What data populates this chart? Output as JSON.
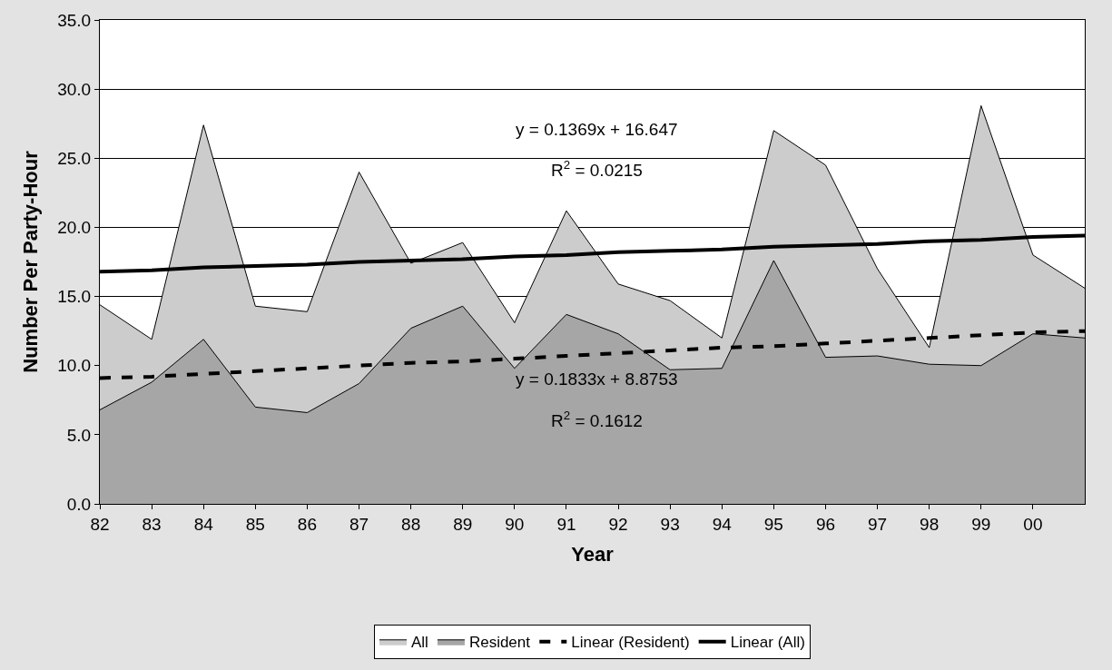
{
  "chart_data": {
    "type": "area",
    "categories": [
      "82",
      "83",
      "84",
      "85",
      "86",
      "87",
      "88",
      "89",
      "90",
      "91",
      "92",
      "93",
      "94",
      "95",
      "96",
      "97",
      "98",
      "99",
      "00",
      null
    ],
    "xlabel": "Year",
    "ylabel": "Number Per Party-Hour",
    "ylim": [
      0,
      35
    ],
    "yticks": [
      {
        "value": 0,
        "label": "0.0"
      },
      {
        "value": 5,
        "label": "5.0"
      },
      {
        "value": 10,
        "label": "10.0"
      },
      {
        "value": 15,
        "label": "15.0"
      },
      {
        "value": 20,
        "label": "20.0"
      },
      {
        "value": 25,
        "label": "25.0"
      },
      {
        "value": 30,
        "label": "30.0"
      },
      {
        "value": 35,
        "label": "35.0"
      }
    ],
    "grid": "y",
    "legend": "bottom",
    "series": [
      {
        "name": "All",
        "color": "#cccccc",
        "values": [
          14.4,
          11.9,
          27.4,
          14.3,
          13.9,
          24.0,
          17.4,
          18.9,
          13.1,
          21.2,
          15.9,
          14.7,
          12.0,
          27.0,
          24.5,
          17.0,
          11.3,
          28.8,
          18.0,
          15.6
        ]
      },
      {
        "name": "Resident",
        "color": "#a6a6a6",
        "values": [
          6.8,
          8.8,
          11.9,
          7.0,
          6.6,
          8.7,
          12.7,
          14.3,
          9.8,
          13.7,
          12.3,
          9.7,
          9.8,
          17.6,
          10.6,
          10.7,
          10.1,
          10.0,
          12.3,
          12.0
        ]
      },
      {
        "name": "Linear (Resident)",
        "type": "line",
        "color": "#000000",
        "line_style": "dashed",
        "values": [
          9.1,
          9.2,
          9.4,
          9.6,
          9.8,
          10.0,
          10.2,
          10.3,
          10.5,
          10.7,
          10.9,
          11.1,
          11.3,
          11.4,
          11.6,
          11.8,
          12.0,
          12.2,
          12.4,
          12.5
        ]
      },
      {
        "name": "Linear (All)",
        "type": "line",
        "color": "#000000",
        "line_style": "solid",
        "values": [
          16.8,
          16.9,
          17.1,
          17.2,
          17.3,
          17.5,
          17.6,
          17.7,
          17.9,
          18.0,
          18.2,
          18.3,
          18.4,
          18.6,
          18.7,
          18.8,
          19.0,
          19.1,
          19.3,
          19.4
        ]
      }
    ],
    "annotations": [
      "y = 0.1369x + 16.647",
      "R$^{2}$ = 0.0215",
      "y = 0.1833x + 8.8753",
      "R$^{2}$ = 0.1612"
    ]
  }
}
